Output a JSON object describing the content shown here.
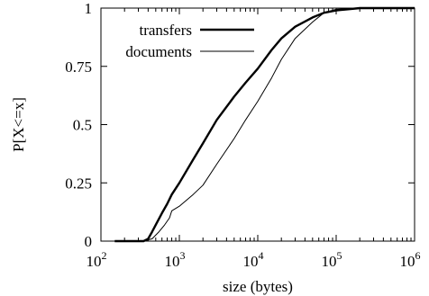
{
  "chart_data": {
    "type": "line",
    "title": "",
    "xlabel": "size (bytes)",
    "ylabel": "P[X<=x]",
    "xscale": "log",
    "xlim": [
      100,
      1000000
    ],
    "ylim": [
      0,
      1
    ],
    "xticks": [
      {
        "value": 100,
        "base": "10",
        "exp": "2"
      },
      {
        "value": 1000,
        "base": "10",
        "exp": "3"
      },
      {
        "value": 10000,
        "base": "10",
        "exp": "4"
      },
      {
        "value": 100000,
        "base": "10",
        "exp": "5"
      },
      {
        "value": 1000000,
        "base": "10",
        "exp": "6"
      }
    ],
    "yticks": [
      {
        "value": 0,
        "label": "0"
      },
      {
        "value": 0.25,
        "label": "0.25"
      },
      {
        "value": 0.5,
        "label": "0.5"
      },
      {
        "value": 0.75,
        "label": "0.75"
      },
      {
        "value": 1,
        "label": "1"
      }
    ],
    "grid": false,
    "legend_position": "top-left",
    "series": [
      {
        "name": "transfers",
        "color": "#000000",
        "weight": "thick",
        "points": [
          [
            150,
            0
          ],
          [
            350,
            0
          ],
          [
            400,
            0.01
          ],
          [
            450,
            0.04
          ],
          [
            500,
            0.07
          ],
          [
            600,
            0.12
          ],
          [
            700,
            0.16
          ],
          [
            800,
            0.2
          ],
          [
            1000,
            0.25
          ],
          [
            1500,
            0.35
          ],
          [
            2000,
            0.42
          ],
          [
            3000,
            0.52
          ],
          [
            5000,
            0.62
          ],
          [
            7000,
            0.68
          ],
          [
            10000,
            0.74
          ],
          [
            15000,
            0.82
          ],
          [
            20000,
            0.87
          ],
          [
            30000,
            0.92
          ],
          [
            50000,
            0.96
          ],
          [
            70000,
            0.98
          ],
          [
            100000,
            0.99
          ],
          [
            200000,
            1.0
          ],
          [
            1000000,
            1.0
          ]
        ]
      },
      {
        "name": "documents",
        "color": "#000000",
        "weight": "thin",
        "points": [
          [
            150,
            0
          ],
          [
            350,
            0
          ],
          [
            450,
            0.01
          ],
          [
            550,
            0.04
          ],
          [
            650,
            0.07
          ],
          [
            750,
            0.1
          ],
          [
            800,
            0.13
          ],
          [
            1000,
            0.15
          ],
          [
            1500,
            0.2
          ],
          [
            2000,
            0.24
          ],
          [
            3000,
            0.33
          ],
          [
            5000,
            0.44
          ],
          [
            7000,
            0.52
          ],
          [
            10000,
            0.6
          ],
          [
            15000,
            0.7
          ],
          [
            20000,
            0.78
          ],
          [
            30000,
            0.87
          ],
          [
            50000,
            0.94
          ],
          [
            70000,
            0.98
          ],
          [
            100000,
            0.995
          ],
          [
            200000,
            1.0
          ],
          [
            1000000,
            1.0
          ]
        ]
      }
    ]
  }
}
